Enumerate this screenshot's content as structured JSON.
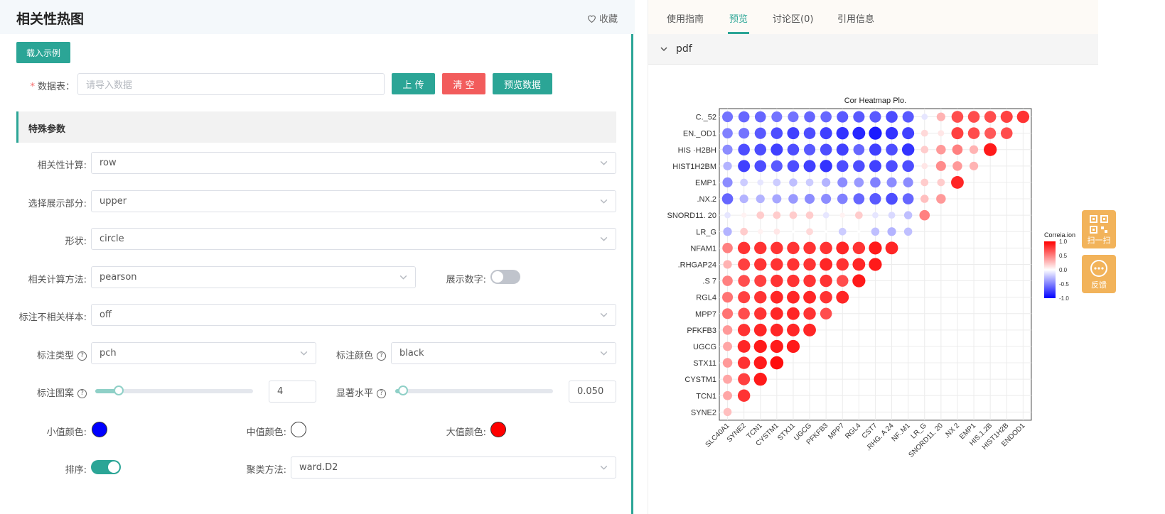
{
  "header": {
    "title": "相关性热图",
    "favorite": "收藏"
  },
  "actions": {
    "load_example": "载入示例",
    "upload": "上 传",
    "clear": "清 空",
    "preview": "预览数据"
  },
  "data_table": {
    "label": "数据表：",
    "placeholder": "请导入数据"
  },
  "section_title": "特殊参数",
  "form": {
    "corr_calc": {
      "label": "相关性计算:",
      "value": "row"
    },
    "display_part": {
      "label": "选择展示部分:",
      "value": "upper"
    },
    "shape": {
      "label": "形状:",
      "value": "circle"
    },
    "method": {
      "label": "相关计算方法:",
      "value": "pearson"
    },
    "show_number": {
      "label": "展示数字:",
      "on": false
    },
    "mark_insig": {
      "label": "标注不相关样本:",
      "value": "off"
    },
    "mark_type": {
      "label": "标注类型",
      "value": "pch"
    },
    "mark_color": {
      "label": "标注颜色",
      "value": "black"
    },
    "mark_pattern": {
      "label": "标注图案",
      "value": "4",
      "level": 0.15
    },
    "sig_level": {
      "label": "显著水平",
      "value": "0.050",
      "level": 0.05
    },
    "low_color": {
      "label": "小值颜色:",
      "color": "#0000ff"
    },
    "mid_color": {
      "label": "中值颜色:",
      "color": "#ffffff"
    },
    "high_color": {
      "label": "大值颜色:",
      "color": "#ff0000"
    },
    "sort": {
      "label": "排序:",
      "on": true
    },
    "cluster": {
      "label": "聚类方法:",
      "value": "ward.D2"
    }
  },
  "tabs": [
    "使用指南",
    "预览",
    "讨论区(0)",
    "引用信息"
  ],
  "active_tab": 1,
  "preview": {
    "section": "pdf"
  },
  "float": {
    "scan": "扫一扫",
    "feedback": "反馈"
  },
  "chart_data": {
    "type": "heatmap",
    "title": "Cor Heatmap Plo.",
    "legend_title": "Correia.ion",
    "legend_ticks": [
      "1.0",
      "0.5",
      "0.0",
      "-0.5",
      "-1.0"
    ],
    "colors": {
      "low": "#0000ff",
      "mid": "#ffffff",
      "high": "#ff0000"
    },
    "row_labels": [
      "C._52",
      "EN._OD1",
      "HIS ·H2BH",
      "HIST1H2BM",
      "EMP1",
      ".NX.2",
      "SNORD11. 20",
      "LR_G",
      "NFAM1",
      ".RHGAP24",
      ".S 7",
      "RGL4",
      "MPP7",
      "PFKFB3",
      "UGCG",
      "STX11",
      "CYSTM1",
      "TCN1",
      "SYNE2"
    ],
    "col_labels": [
      "SLC40A1",
      "SYNE2",
      "TCN1",
      "CYSTM1",
      "STX11",
      "UGCG",
      "PFKFB3",
      "MPP7",
      "RGL4",
      "CST7",
      ".RHG. A 24",
      "NF..M1",
      "LR_G",
      "SNORD11. 20",
      ".NX 2",
      "EMP1",
      "HIS.1.2B",
      "HIST1H2B",
      "ENDOD1"
    ],
    "values": [
      [
        -0.55,
        -0.6,
        -0.6,
        -0.55,
        -0.55,
        -0.6,
        -0.6,
        -0.65,
        -0.65,
        -0.65,
        -0.7,
        -0.65,
        -0.1,
        0.3,
        0.7,
        0.7,
        0.7,
        0.75,
        0.8
      ],
      [
        -0.5,
        -0.55,
        -0.65,
        -0.7,
        -0.75,
        -0.7,
        -0.75,
        -0.8,
        -0.85,
        -0.9,
        -0.8,
        -0.75,
        0.15,
        0.1,
        0.75,
        0.7,
        0.65,
        0.7
      ],
      [
        -0.45,
        -0.7,
        -0.7,
        -0.75,
        -0.7,
        -0.65,
        -0.7,
        -0.75,
        -0.6,
        -0.75,
        -0.7,
        -0.8,
        0.2,
        0.4,
        0.5,
        0.3,
        0.9
      ],
      [
        -0.3,
        -0.75,
        -0.7,
        -0.65,
        -0.7,
        -0.75,
        -0.8,
        -0.7,
        -0.7,
        -0.75,
        -0.7,
        -0.7,
        0.1,
        0.45,
        0.4,
        0.3
      ],
      [
        -0.45,
        -0.2,
        -0.1,
        -0.2,
        -0.25,
        -0.2,
        -0.3,
        -0.45,
        -0.4,
        -0.5,
        -0.45,
        -0.45,
        0.2,
        0.2,
        0.85
      ],
      [
        -0.6,
        -0.3,
        -0.3,
        -0.35,
        -0.4,
        -0.45,
        -0.45,
        -0.5,
        -0.6,
        -0.65,
        -0.7,
        -0.6,
        0.25,
        0.4
      ],
      [
        -0.1,
        0.05,
        0.2,
        0.2,
        0.2,
        0.2,
        -0.1,
        0.05,
        0.2,
        -0.1,
        -0.15,
        -0.25,
        0.5
      ],
      [
        -0.3,
        0.2,
        0.05,
        0.1,
        0.0,
        0.15,
        0.0,
        -0.2,
        0.0,
        -0.25,
        -0.3,
        -0.25
      ],
      [
        0.5,
        0.8,
        0.8,
        0.8,
        0.8,
        0.8,
        0.8,
        0.85,
        0.8,
        0.9,
        0.85
      ],
      [
        0.3,
        0.75,
        0.8,
        0.8,
        0.8,
        0.8,
        0.85,
        0.8,
        0.85,
        0.9
      ],
      [
        0.5,
        0.7,
        0.75,
        0.8,
        0.8,
        0.8,
        0.8,
        0.7,
        0.9
      ],
      [
        0.55,
        0.75,
        0.8,
        0.85,
        0.85,
        0.85,
        0.8,
        0.85
      ],
      [
        0.55,
        0.7,
        0.8,
        0.85,
        0.85,
        0.8,
        0.7
      ],
      [
        0.4,
        0.8,
        0.85,
        0.85,
        0.85,
        0.85
      ],
      [
        0.35,
        0.85,
        0.9,
        0.9,
        0.9
      ],
      [
        0.4,
        0.8,
        0.9,
        0.95
      ],
      [
        0.35,
        0.75,
        0.9
      ],
      [
        0.35,
        0.8
      ],
      [
        0.25
      ]
    ]
  }
}
